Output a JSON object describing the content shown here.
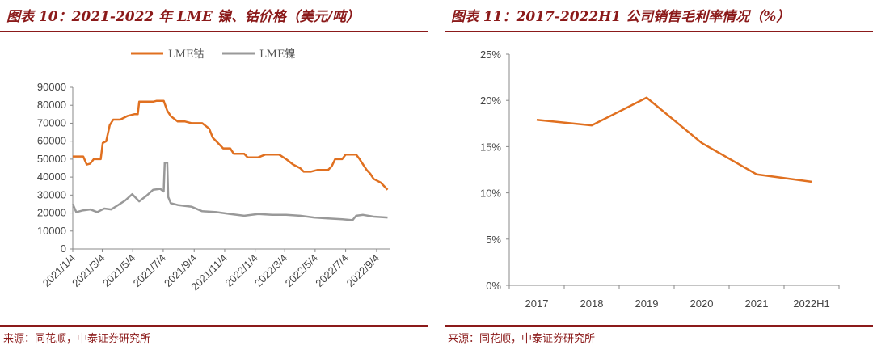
{
  "left": {
    "title": "图表 10：2021-2022 年 LME 镍、钴价格（美元/吨）",
    "source": "来源：同花顺，中泰证券研究所"
  },
  "right": {
    "title": "图表 11：2017-2022H1 公司销售毛利率情况（%）",
    "source": "来源：同花顺，中泰证券研究所"
  },
  "chart_data": [
    {
      "type": "line",
      "title": "",
      "xlabel": "",
      "ylabel": "",
      "ylim": [
        0,
        90000
      ],
      "y_ticks": [
        "0",
        "10000",
        "20000",
        "30000",
        "40000",
        "50000",
        "60000",
        "70000",
        "80000",
        "90000"
      ],
      "x_tick_labels": [
        "2021/1/4",
        "2021/3/4",
        "2021/5/4",
        "2021/7/4",
        "2021/9/4",
        "2021/11/4",
        "2022/1/4",
        "2022/3/4",
        "2022/5/4",
        "2022/7/4",
        "2022/9/4"
      ],
      "legend_position": "top",
      "grid": false,
      "series": [
        {
          "name": "LME钴",
          "color": "#E07020",
          "points": [
            [
              "2021-01-04",
              51500
            ],
            [
              "2021-01-25",
              51500
            ],
            [
              "2021-02-01",
              47000
            ],
            [
              "2021-02-08",
              47500
            ],
            [
              "2021-02-15",
              50000
            ],
            [
              "2021-03-01",
              50000
            ],
            [
              "2021-03-05",
              59000
            ],
            [
              "2021-03-12",
              60000
            ],
            [
              "2021-03-19",
              69000
            ],
            [
              "2021-03-26",
              72000
            ],
            [
              "2021-04-09",
              72000
            ],
            [
              "2021-04-23",
              74000
            ],
            [
              "2021-05-07",
              75000
            ],
            [
              "2021-05-14",
              75000
            ],
            [
              "2021-05-17",
              82000
            ],
            [
              "2021-06-14",
              82000
            ],
            [
              "2021-06-21",
              82500
            ],
            [
              "2021-07-05",
              82500
            ],
            [
              "2021-07-12",
              77000
            ],
            [
              "2021-07-19",
              74000
            ],
            [
              "2021-08-02",
              71000
            ],
            [
              "2021-08-16",
              71000
            ],
            [
              "2021-08-30",
              70000
            ],
            [
              "2021-09-20",
              70000
            ],
            [
              "2021-10-04",
              67000
            ],
            [
              "2021-10-11",
              62000
            ],
            [
              "2021-10-25",
              58000
            ],
            [
              "2021-11-01",
              56000
            ],
            [
              "2021-11-15",
              56000
            ],
            [
              "2021-11-22",
              53000
            ],
            [
              "2021-12-13",
              53000
            ],
            [
              "2021-12-20",
              51000
            ],
            [
              "2022-01-10",
              51000
            ],
            [
              "2022-01-24",
              52500
            ],
            [
              "2022-02-21",
              52500
            ],
            [
              "2022-03-07",
              50000
            ],
            [
              "2022-03-21",
              47000
            ],
            [
              "2022-04-04",
              45000
            ],
            [
              "2022-04-11",
              43000
            ],
            [
              "2022-04-25",
              43000
            ],
            [
              "2022-05-09",
              44000
            ],
            [
              "2022-05-30",
              44000
            ],
            [
              "2022-06-06",
              46000
            ],
            [
              "2022-06-13",
              50000
            ],
            [
              "2022-06-27",
              50000
            ],
            [
              "2022-07-04",
              52500
            ],
            [
              "2022-07-25",
              52500
            ],
            [
              "2022-08-01",
              50000
            ],
            [
              "2022-08-08",
              47000
            ],
            [
              "2022-08-15",
              44000
            ],
            [
              "2022-08-22",
              42000
            ],
            [
              "2022-08-29",
              39000
            ],
            [
              "2022-09-12",
              37000
            ],
            [
              "2022-09-26",
              33000
            ]
          ]
        },
        {
          "name": "LME镍",
          "color": "#999999",
          "points": [
            [
              "2021-01-04",
              25000
            ],
            [
              "2021-01-11",
              20500
            ],
            [
              "2021-01-25",
              21500
            ],
            [
              "2021-02-08",
              22000
            ],
            [
              "2021-02-22",
              20500
            ],
            [
              "2021-03-08",
              22500
            ],
            [
              "2021-03-22",
              22000
            ],
            [
              "2021-04-05",
              24500
            ],
            [
              "2021-04-19",
              27000
            ],
            [
              "2021-05-03",
              30500
            ],
            [
              "2021-05-17",
              26500
            ],
            [
              "2021-05-31",
              29500
            ],
            [
              "2021-06-14",
              33000
            ],
            [
              "2021-06-28",
              33500
            ],
            [
              "2021-07-05",
              32000
            ],
            [
              "2021-07-07",
              48000
            ],
            [
              "2021-07-12",
              48000
            ],
            [
              "2021-07-14",
              29000
            ],
            [
              "2021-07-19",
              25500
            ],
            [
              "2021-08-02",
              24500
            ],
            [
              "2021-08-30",
              23500
            ],
            [
              "2021-09-20",
              21000
            ],
            [
              "2021-10-18",
              20500
            ],
            [
              "2021-11-15",
              19500
            ],
            [
              "2021-12-13",
              18500
            ],
            [
              "2022-01-10",
              19500
            ],
            [
              "2022-02-07",
              19000
            ],
            [
              "2022-03-07",
              19000
            ],
            [
              "2022-04-04",
              18500
            ],
            [
              "2022-05-02",
              17500
            ],
            [
              "2022-05-30",
              17000
            ],
            [
              "2022-06-27",
              16500
            ],
            [
              "2022-07-18",
              16000
            ],
            [
              "2022-07-25",
              18500
            ],
            [
              "2022-08-08",
              19000
            ],
            [
              "2022-08-29",
              18000
            ],
            [
              "2022-09-26",
              17500
            ]
          ]
        }
      ]
    },
    {
      "type": "line",
      "title": "",
      "xlabel": "",
      "ylabel": "",
      "ylim": [
        0,
        25
      ],
      "y_ticks": [
        "0%",
        "5%",
        "10%",
        "15%",
        "20%",
        "25%"
      ],
      "categories": [
        "2017",
        "2018",
        "2019",
        "2020",
        "2021",
        "2022H1"
      ],
      "grid": false,
      "series": [
        {
          "color": "#E07020",
          "values": [
            17.9,
            17.3,
            20.3,
            15.4,
            12.0,
            11.2
          ]
        }
      ]
    }
  ]
}
